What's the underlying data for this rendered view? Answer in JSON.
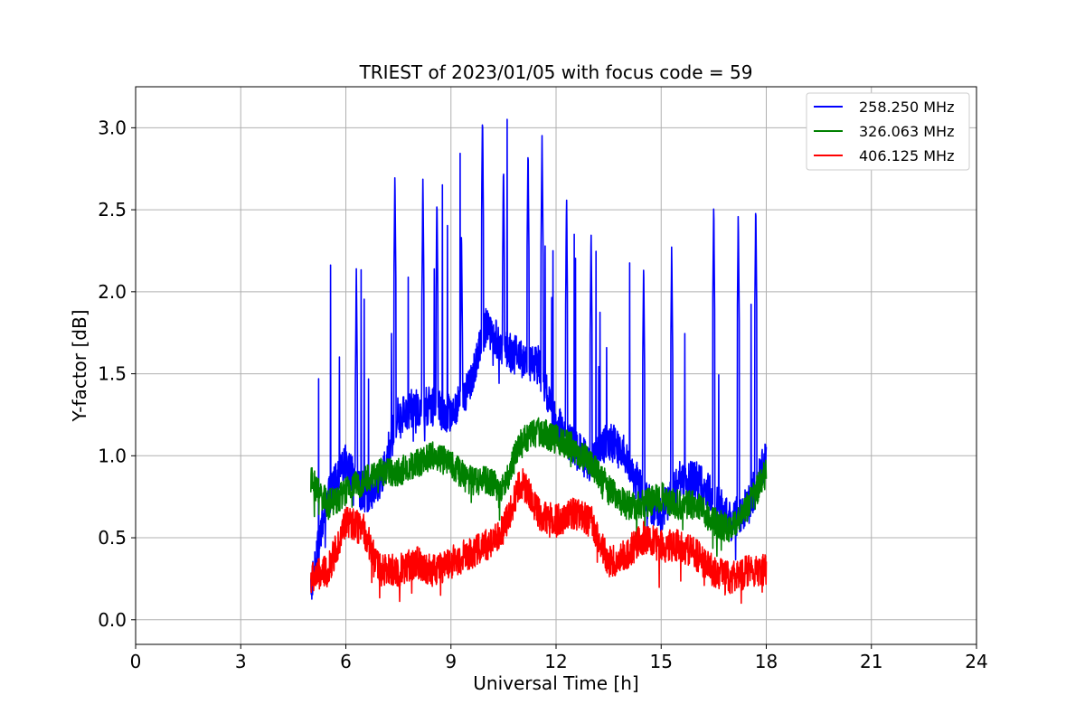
{
  "chart_data": {
    "type": "line",
    "title": "TRIEST of 2023/01/05 with focus code = 59",
    "xlabel": "Universal Time [h]",
    "ylabel": "Y-factor [dB]",
    "xlim": [
      0,
      24
    ],
    "ylim": [
      -0.15,
      3.25
    ],
    "xticks": [
      0,
      3,
      6,
      9,
      12,
      15,
      18,
      21,
      24
    ],
    "yticks": [
      0.0,
      0.5,
      1.0,
      1.5,
      2.0,
      2.5,
      3.0
    ],
    "ytick_labels": [
      "0.0",
      "0.5",
      "1.0",
      "1.5",
      "2.0",
      "2.5",
      "3.0"
    ],
    "grid": true,
    "legend_position": "top-right",
    "x_range_of_data": [
      5.0,
      18.0
    ],
    "series": [
      {
        "name": "258.250 MHz",
        "color": "#0000ff",
        "x": [
          5.0,
          5.5,
          6.0,
          6.5,
          7.0,
          7.5,
          8.0,
          8.5,
          9.0,
          9.5,
          10.0,
          10.5,
          11.0,
          11.5,
          12.0,
          12.5,
          13.0,
          13.5,
          14.0,
          14.5,
          15.0,
          15.5,
          16.0,
          16.5,
          17.0,
          17.5,
          18.0
        ],
        "values": [
          0.2,
          0.75,
          0.95,
          0.75,
          0.85,
          1.25,
          1.3,
          1.3,
          1.25,
          1.4,
          1.8,
          1.65,
          1.6,
          1.55,
          1.2,
          1.05,
          0.95,
          1.1,
          1.0,
          0.75,
          0.65,
          0.85,
          0.85,
          0.75,
          0.6,
          0.7,
          1.0
        ],
        "peaks": [
          {
            "x": 6.3,
            "y": 2.14
          },
          {
            "x": 7.4,
            "y": 2.75
          },
          {
            "x": 8.2,
            "y": 2.7
          },
          {
            "x": 8.6,
            "y": 2.6
          },
          {
            "x": 9.3,
            "y": 2.4
          },
          {
            "x": 9.9,
            "y": 3.1
          },
          {
            "x": 10.5,
            "y": 2.8
          },
          {
            "x": 11.2,
            "y": 2.9
          },
          {
            "x": 11.6,
            "y": 2.98
          },
          {
            "x": 12.3,
            "y": 2.6
          },
          {
            "x": 13.0,
            "y": 2.4
          },
          {
            "x": 14.5,
            "y": 2.2
          },
          {
            "x": 15.3,
            "y": 2.3
          },
          {
            "x": 16.5,
            "y": 2.56
          },
          {
            "x": 17.2,
            "y": 2.5
          },
          {
            "x": 17.7,
            "y": 2.56
          }
        ]
      },
      {
        "name": "326.063 MHz",
        "color": "#008000",
        "x": [
          5.0,
          5.5,
          6.0,
          6.5,
          7.0,
          7.5,
          8.0,
          8.5,
          9.0,
          9.5,
          10.0,
          10.5,
          11.0,
          11.5,
          12.0,
          12.5,
          13.0,
          13.5,
          14.0,
          14.5,
          15.0,
          15.5,
          16.0,
          16.5,
          17.0,
          17.5,
          18.0
        ],
        "values": [
          0.85,
          0.7,
          0.78,
          0.85,
          0.9,
          0.9,
          0.95,
          1.0,
          0.95,
          0.85,
          0.85,
          0.8,
          1.1,
          1.15,
          1.1,
          1.05,
          0.95,
          0.8,
          0.7,
          0.7,
          0.75,
          0.7,
          0.7,
          0.6,
          0.55,
          0.7,
          0.9
        ]
      },
      {
        "name": "406.125 MHz",
        "color": "#ff0000",
        "x": [
          5.0,
          5.5,
          6.0,
          6.5,
          7.0,
          7.5,
          8.0,
          8.5,
          9.0,
          9.5,
          10.0,
          10.5,
          11.0,
          11.5,
          12.0,
          12.5,
          13.0,
          13.5,
          14.0,
          14.5,
          15.0,
          15.5,
          16.0,
          16.5,
          17.0,
          17.5,
          18.0
        ],
        "values": [
          0.25,
          0.3,
          0.6,
          0.55,
          0.3,
          0.3,
          0.35,
          0.3,
          0.35,
          0.4,
          0.45,
          0.55,
          0.85,
          0.65,
          0.6,
          0.65,
          0.6,
          0.35,
          0.4,
          0.5,
          0.45,
          0.45,
          0.4,
          0.3,
          0.25,
          0.3,
          0.3
        ]
      }
    ]
  }
}
